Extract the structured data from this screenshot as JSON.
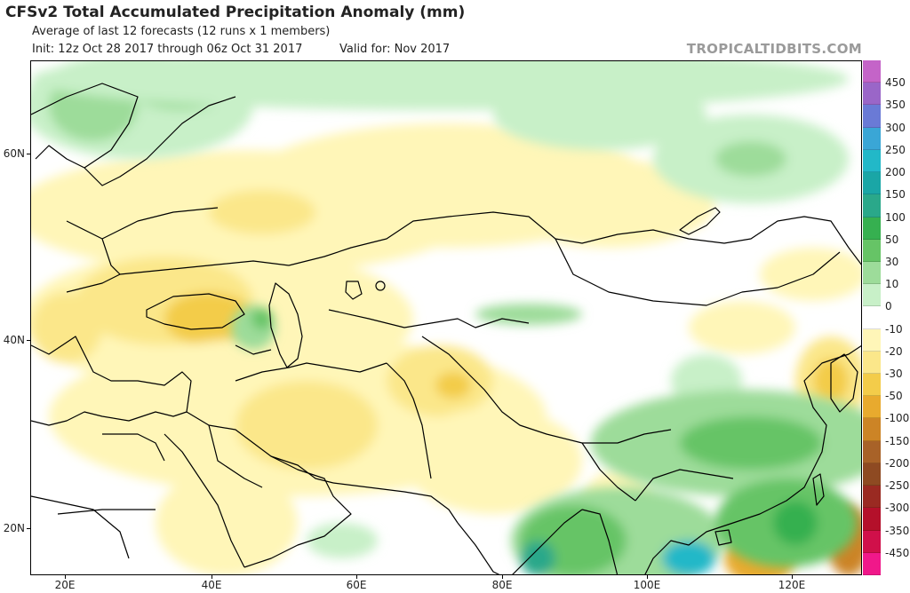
{
  "header": {
    "title": "CFSv2 Total Accumulated Precipitation Anomaly (mm)",
    "subtitle": "Average of last 12 forecasts (12 runs x 1 members)",
    "init": "Init: 12z Oct 28 2017 through 06z Oct 31 2017",
    "valid": "Valid for: Nov 2017",
    "brand": "TROPICALTIDBITS.COM"
  },
  "axes": {
    "lat_labels": [
      "60N",
      "40N",
      "20N"
    ],
    "lon_labels": [
      "20E",
      "40E",
      "60E",
      "80E",
      "100E",
      "120E"
    ]
  },
  "colorbar": {
    "labels": [
      "450",
      "350",
      "300",
      "250",
      "200",
      "150",
      "100",
      "50",
      "30",
      "10",
      "0",
      "-10",
      "-20",
      "-30",
      "-50",
      "-100",
      "-150",
      "-200",
      "-250",
      "-300",
      "-350",
      "-450"
    ],
    "colors": [
      "#c464c8",
      "#9a66c8",
      "#6a7ad6",
      "#3aa6d6",
      "#22b8c8",
      "#1aa6a6",
      "#2aa88a",
      "#36b050",
      "#66c466",
      "#9ddc9a",
      "#c8f0c8",
      "#ffffff",
      "#fff6b8",
      "#fbe78a",
      "#f3cc4a",
      "#e8aa2e",
      "#cc8426",
      "#a86228",
      "#8e4a22",
      "#9a2a22",
      "#b4102a",
      "#d0104a",
      "#f0188a"
    ]
  }
}
